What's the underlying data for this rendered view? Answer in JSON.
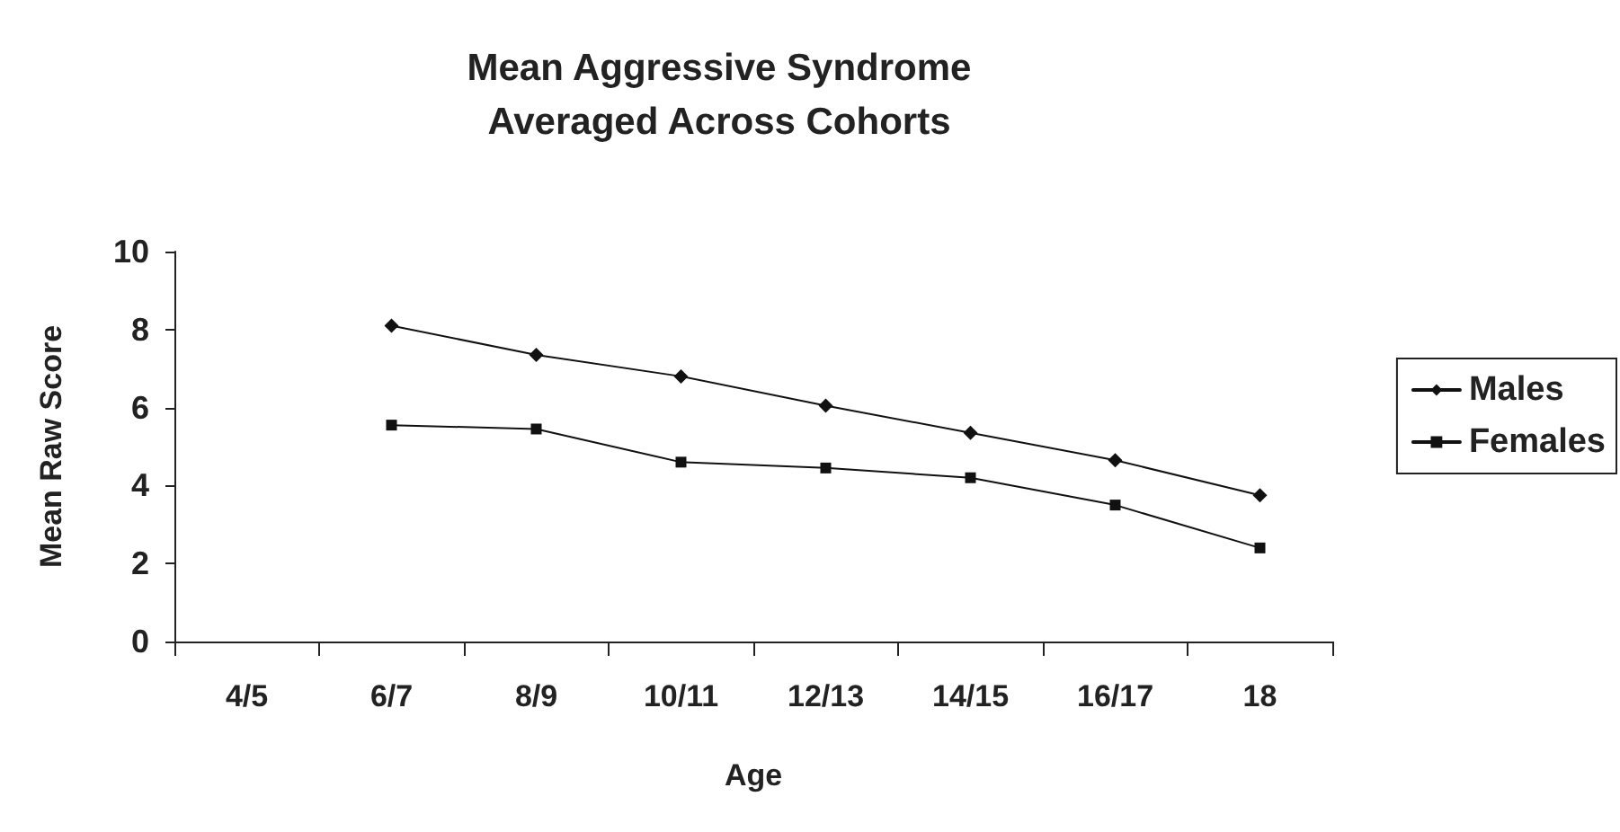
{
  "chart_data": {
    "type": "line",
    "title": "Mean Aggressive Syndrome\nAveraged Across Cohorts",
    "xlabel": "Age",
    "ylabel": "Mean Raw Score",
    "categories": [
      "4/5",
      "6/7",
      "8/9",
      "10/11",
      "12/13",
      "14/15",
      "16/17",
      "18"
    ],
    "series": [
      {
        "name": "Males",
        "color": "#111111",
        "marker": "diamond",
        "values": [
          null,
          8.1,
          7.35,
          6.8,
          6.05,
          5.35,
          4.65,
          3.75
        ]
      },
      {
        "name": "Females",
        "color": "#111111",
        "marker": "square",
        "values": [
          null,
          5.55,
          5.45,
          4.6,
          4.45,
          4.2,
          3.5,
          2.4
        ]
      }
    ],
    "ylim": [
      0,
      10
    ],
    "yticks": [
      0,
      2,
      4,
      6,
      8,
      10
    ],
    "grid": false,
    "legend": "right",
    "line_style": "solid"
  }
}
